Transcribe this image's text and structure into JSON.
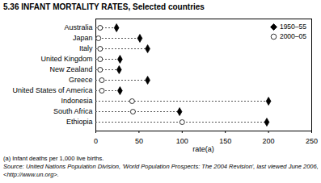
{
  "chart_data": {
    "type": "dot",
    "orientation": "horizontal",
    "title": "5.36 INFANT MORTALITY RATES, Selected countries",
    "x_label": "rate(a)",
    "footnote": "(a) Infant deaths per 1,000 live births.",
    "source": "Source: United Nations Population Division, 'World Population Prospects: The 2004 Revision', last viewed June 2006, <http://www.un.org>.",
    "categories": [
      "Australia",
      "Japan",
      "Italy",
      "United Kingdom",
      "New Zealand",
      "Greece",
      "United States of America",
      "Indonesia",
      "South Africa",
      "Ethiopia"
    ],
    "series": [
      {
        "name": "1950–55",
        "marker": "diamond",
        "color": "#000000",
        "values": [
          24,
          51,
          60,
          28,
          27,
          60,
          28,
          200,
          97,
          198
        ]
      },
      {
        "name": "2000–05",
        "marker": "circle",
        "color": "#ffffff",
        "values": [
          5,
          3,
          5,
          5,
          5,
          7,
          7,
          42,
          43,
          100
        ]
      }
    ],
    "xlim": [
      0,
      250
    ],
    "xticks": [
      0,
      50,
      100,
      150,
      200,
      250
    ],
    "grid": false,
    "legend": "top-right",
    "line_style": "dashed"
  }
}
